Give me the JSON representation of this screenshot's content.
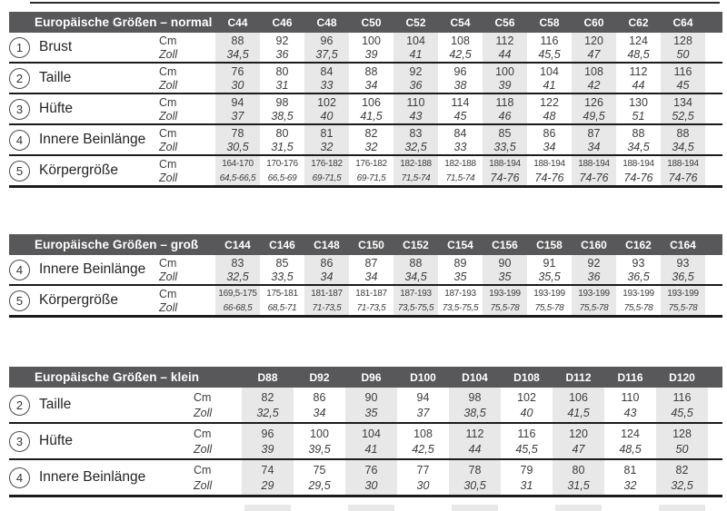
{
  "colors": {
    "header_bg": "#58585a",
    "band": "#e8e8e9",
    "rule": "#1b1b1b",
    "text": "#3c3c3c"
  },
  "tables": [
    {
      "id": "normal",
      "title": "Europäische Größen – normal",
      "unit_cm": "Cm",
      "unit_zoll": "Zoll",
      "sizes": [
        "C44",
        "C46",
        "C48",
        "C50",
        "C52",
        "C54",
        "C56",
        "C58",
        "C60",
        "C62",
        "C64"
      ],
      "rows": [
        {
          "num": "1",
          "label": "Brust",
          "cm": [
            "88",
            "92",
            "96",
            "100",
            "104",
            "108",
            "112",
            "116",
            "120",
            "124",
            "128"
          ],
          "zoll": [
            "34,5",
            "36",
            "37,5",
            "39",
            "41",
            "42,5",
            "44",
            "45,5",
            "47",
            "48,5",
            "50"
          ]
        },
        {
          "num": "2",
          "label": "Taille",
          "cm": [
            "76",
            "80",
            "84",
            "88",
            "92",
            "96",
            "100",
            "104",
            "108",
            "112",
            "116"
          ],
          "zoll": [
            "30",
            "31",
            "33",
            "34",
            "36",
            "38",
            "39",
            "41",
            "42",
            "44",
            "45"
          ]
        },
        {
          "num": "3",
          "label": "Hüfte",
          "cm": [
            "94",
            "98",
            "102",
            "106",
            "110",
            "114",
            "118",
            "122",
            "126",
            "130",
            "134"
          ],
          "zoll": [
            "37",
            "38,5",
            "40",
            "41,5",
            "43",
            "45",
            "46",
            "48",
            "49,5",
            "51",
            "52,5"
          ]
        },
        {
          "num": "4",
          "label": "Innere Beinlänge",
          "cm": [
            "78",
            "80",
            "81",
            "82",
            "83",
            "84",
            "85",
            "86",
            "87",
            "88",
            "88"
          ],
          "zoll": [
            "30,5",
            "31,5",
            "32",
            "32",
            "32,5",
            "33",
            "33,5",
            "34",
            "34",
            "34,5",
            "34,5"
          ]
        },
        {
          "num": "5",
          "label": "Körpergröße",
          "cm": [
            "164-170",
            "170-176",
            "176-182",
            "176-182",
            "182-188",
            "182-188",
            "188-194",
            "188-194",
            "188-194",
            "188-194",
            "188-194"
          ],
          "zoll": [
            "64,5-66,5",
            "66,5-69",
            "69-71,5",
            "69-71,5",
            "71,5-74",
            "71,5-74",
            "74-76",
            "74-76",
            "74-76",
            "74-76",
            "74-76"
          ]
        }
      ]
    },
    {
      "id": "gross",
      "title": "Europäische Größen – groß",
      "unit_cm": "Cm",
      "unit_zoll": "Zoll",
      "sizes": [
        "C144",
        "C146",
        "C148",
        "C150",
        "C152",
        "C154",
        "C156",
        "C158",
        "C160",
        "C162",
        "C164"
      ],
      "rows": [
        {
          "num": "4",
          "label": "Innere Beinlänge",
          "cm": [
            "83",
            "85",
            "86",
            "87",
            "88",
            "89",
            "90",
            "91",
            "92",
            "93",
            "93"
          ],
          "zoll": [
            "32,5",
            "33,5",
            "34",
            "34",
            "34,5",
            "35",
            "35",
            "35,5",
            "36",
            "36,5",
            "36,5"
          ]
        },
        {
          "num": "5",
          "label": "Körpergröße",
          "cm": [
            "169,5-175",
            "175-181",
            "181-187",
            "181-187",
            "187-193",
            "187-193",
            "193-199",
            "193-199",
            "193-199",
            "193-199",
            "193-199"
          ],
          "zoll": [
            "66-68,5",
            "68,5-71",
            "71-73,5",
            "71-73,5",
            "73,5-75,5",
            "73,5-75,5",
            "75,5-78",
            "75,5-78",
            "75,5-78",
            "75,5-78",
            "75,5-78"
          ]
        }
      ]
    },
    {
      "id": "klein",
      "title": "Europäische Größen – klein",
      "unit_cm": "Cm",
      "unit_zoll": "Zoll",
      "sizes": [
        "D88",
        "D92",
        "D96",
        "D100",
        "D104",
        "D108",
        "D112",
        "D116",
        "D120"
      ],
      "rows": [
        {
          "num": "2",
          "label": "Taille",
          "cm": [
            "82",
            "86",
            "90",
            "94",
            "98",
            "102",
            "106",
            "110",
            "116"
          ],
          "zoll": [
            "32,5",
            "34",
            "35",
            "37",
            "38,5",
            "40",
            "41,5",
            "43",
            "45,5"
          ]
        },
        {
          "num": "3",
          "label": "Hüfte",
          "cm": [
            "96",
            "100",
            "104",
            "108",
            "112",
            "116",
            "120",
            "124",
            "128"
          ],
          "zoll": [
            "39",
            "39,5",
            "41",
            "42,5",
            "44",
            "45,5",
            "47",
            "48,5",
            "50"
          ]
        },
        {
          "num": "4",
          "label": "Innere Beinlänge",
          "cm": [
            "74",
            "75",
            "76",
            "77",
            "78",
            "79",
            "80",
            "81",
            "82"
          ],
          "zoll": [
            "29",
            "29,5",
            "30",
            "30",
            "30,5",
            "31",
            "31,5",
            "32",
            "32,5"
          ]
        }
      ]
    }
  ]
}
